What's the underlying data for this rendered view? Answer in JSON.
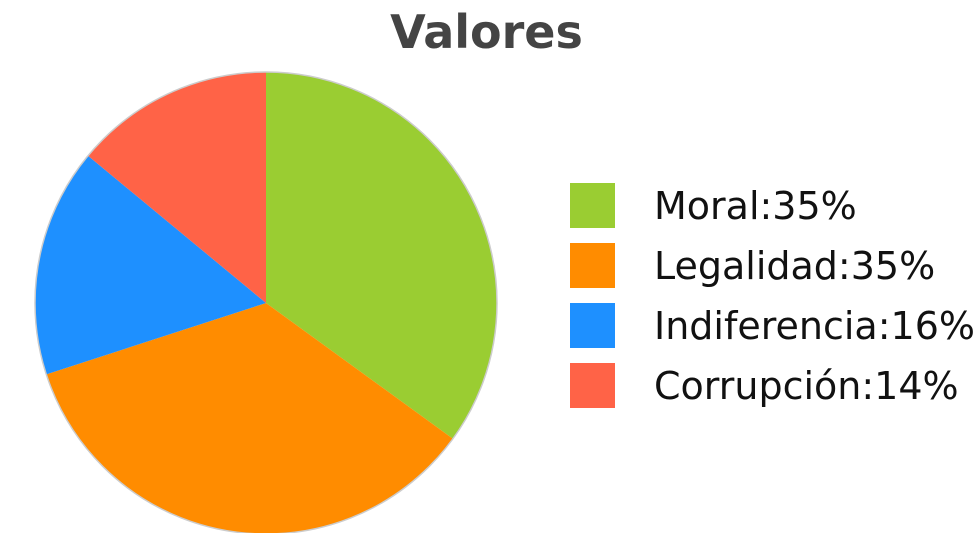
{
  "chart_data": {
    "type": "pie",
    "title": "Valores",
    "slices": [
      {
        "label": "Moral",
        "value": 35,
        "display": "Moral:35%",
        "color": "#9ACD32"
      },
      {
        "label": "Legalidad",
        "value": 35,
        "display": "Legalidad:35%",
        "color": "#FF8C00"
      },
      {
        "label": "Indiferencia",
        "value": 16,
        "display": "Indiferencia:16%",
        "color": "#1E90FF"
      },
      {
        "label": "Corrupción",
        "value": 14,
        "display": "Corrupción:14%",
        "color": "#FF6347"
      }
    ],
    "legend": "right"
  }
}
